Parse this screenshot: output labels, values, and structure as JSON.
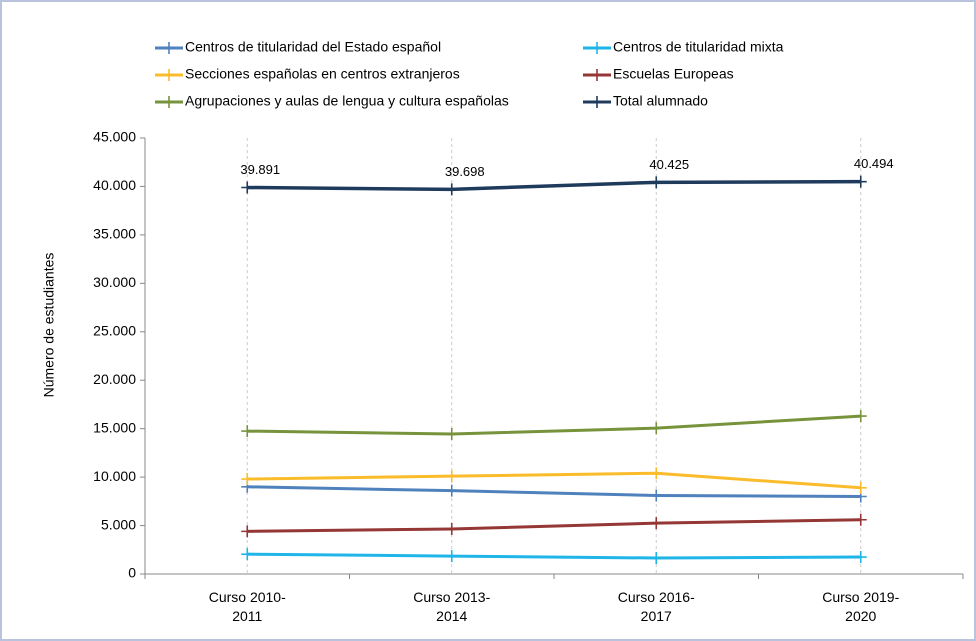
{
  "chart_data": {
    "type": "line",
    "y_label": "Número de estudiantes",
    "categories": [
      "Curso 2010-2011",
      "Curso 2013-2014",
      "Curso 2016-2017",
      "Curso 2019-2020"
    ],
    "series": [
      {
        "name": "Centros de titularidad del Estado español",
        "color": "#4f81bd",
        "values": [
          9000,
          8600,
          8100,
          8000
        ]
      },
      {
        "name": "Centros de titularidad mixta",
        "color": "#1fb5e8",
        "values": [
          2050,
          1850,
          1650,
          1750
        ]
      },
      {
        "name": "Secciones españolas en centros extranjeros",
        "color": "#fbbc2c",
        "values": [
          9800,
          10100,
          10400,
          8900
        ]
      },
      {
        "name": "Escuelas Europeas",
        "color": "#953735",
        "values": [
          4400,
          4650,
          5250,
          5600
        ]
      },
      {
        "name": "Agrupaciones y aulas de lengua y cultura españolas",
        "color": "#77933c",
        "values": [
          14750,
          14450,
          15050,
          16300
        ]
      },
      {
        "name": "Total alumnado",
        "color": "#1f3b5c",
        "values": [
          39891,
          39698,
          40425,
          40494
        ],
        "value_labels": [
          "39.891",
          "39.698",
          "40.425",
          "40.494"
        ]
      }
    ],
    "ylim": [
      0,
      45000
    ],
    "yticks": [
      0,
      {
        "value": 5000,
        "label": "5.000"
      },
      {
        "value": 10000,
        "label": "10.000"
      },
      {
        "value": 15000,
        "label": "15.000"
      },
      {
        "value": 20000,
        "label": "20.000"
      },
      {
        "value": 25000,
        "label": "25.000"
      },
      {
        "value": 30000,
        "label": "30.000"
      },
      {
        "value": 35000,
        "label": "35.000"
      },
      {
        "value": 40000,
        "label": "40.000"
      },
      {
        "value": 45000,
        "label": "45.000"
      }
    ],
    "grid": true,
    "legend": "top"
  }
}
